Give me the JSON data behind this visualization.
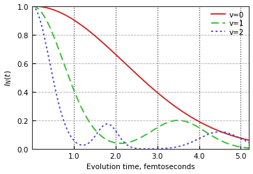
{
  "title": "",
  "xlabel": "Evolution time, femtoseconds",
  "ylabel": "$I_N(t)$",
  "xlim": [
    0.0,
    5.2
  ],
  "ylim": [
    0.0,
    1.0
  ],
  "xticks": [
    1.0,
    2.0,
    3.0,
    4.0,
    5.0
  ],
  "yticks": [
    0.0,
    0.2,
    0.4,
    0.6,
    0.8,
    1.0
  ],
  "vlines": [
    1.0,
    2.0,
    3.0,
    4.0,
    5.0
  ],
  "legend": [
    {
      "label": "v=0",
      "color": "#cc2222",
      "linestyle": "solid"
    },
    {
      "label": "v=1",
      "color": "#33bb33",
      "linestyle": "dashed"
    },
    {
      "label": "v=2",
      "color": "#4444cc",
      "linestyle": "dotted"
    }
  ],
  "background_color": "#ffffff",
  "grid_color": "#aaaaaa",
  "v0": {
    "sigma": 2.2
  },
  "v1": {
    "sigma1": 0.75,
    "amp2": 0.2,
    "mu2": 3.5,
    "sigma2": 0.65
  },
  "v2": {
    "sigma1": 0.42,
    "amp2": 0.175,
    "mu2": 1.8,
    "sigma2": 0.25,
    "amp3": 0.12,
    "mu3": 4.5,
    "sigma3": 0.5
  }
}
